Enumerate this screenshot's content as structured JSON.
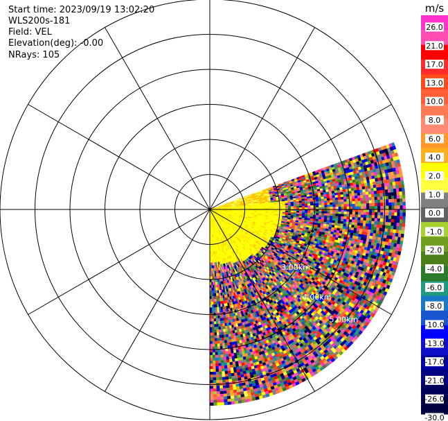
{
  "info": {
    "start_time": "Start time: 2023/09/19 13:02:20",
    "instrument": "WLS200s-181",
    "field": "Field: VEL",
    "elevation": "Elevation(deg): -0.00",
    "nrays": "NRays: 105"
  },
  "chart_data": {
    "type": "heatmap",
    "projection": "polar-ppi",
    "field": "VEL",
    "units": "m/s",
    "range_rings_km": [
      1,
      2,
      3,
      4,
      5
    ],
    "ring_labels": [
      "3.00km",
      "4.00km",
      "5.00km"
    ],
    "spokes_deg": [
      0,
      30,
      60,
      90,
      120,
      150,
      180,
      210,
      240,
      270,
      300,
      330
    ],
    "scan_sector_deg": [
      70,
      180
    ],
    "max_range_km": 5.6,
    "colorbar": {
      "label": "m/s",
      "ticks": [
        "26.0",
        "21.0",
        "17.0",
        "13.0",
        "10.0",
        "8.0",
        "6.0",
        "4.0",
        "2.0",
        "1.0",
        "0.0",
        "-1.0",
        "-2.0",
        "-4.0",
        "-6.0",
        "-8.0",
        "-10.0",
        "-13.0",
        "-17.0",
        "-21.0",
        "-26.0",
        "-30.0"
      ],
      "colors": [
        "#ff33cc",
        "#ff4fb4",
        "#ff0000",
        "#ff2a2a",
        "#ff4a1a",
        "#ff5e36",
        "#ff7a55",
        "#ff8c72",
        "#ff9a2a",
        "#ffb020",
        "#ffff00",
        "#ffff40",
        "#808080",
        "#606060",
        "#a8d030",
        "#70a020",
        "#4b7f1a",
        "#2a7a2a",
        "#1f9a80",
        "#1a78c8",
        "#1a55d0",
        "#0000ff",
        "#1010c8",
        "#0000a0",
        "#000080",
        "#00005a",
        "#000040"
      ]
    }
  }
}
